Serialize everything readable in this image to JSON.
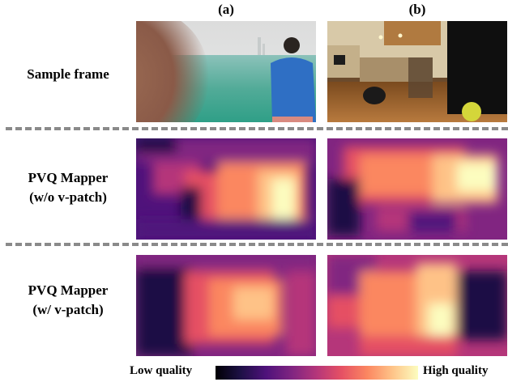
{
  "columns": [
    "(a)",
    "(b)"
  ],
  "rows": [
    {
      "label_lines": [
        "Sample frame"
      ]
    },
    {
      "label_lines": [
        "PVQ Mapper",
        "(w/o v-patch)"
      ]
    },
    {
      "label_lines": [
        "PVQ Mapper",
        "(w/ v-patch)"
      ]
    }
  ],
  "legend": {
    "low": "Low quality",
    "high": "High quality"
  },
  "colormap": [
    "#000004",
    "#1c1044",
    "#4f127b",
    "#812581",
    "#b5367a",
    "#e55064",
    "#fb8761",
    "#fec287",
    "#fcfdbf"
  ]
}
